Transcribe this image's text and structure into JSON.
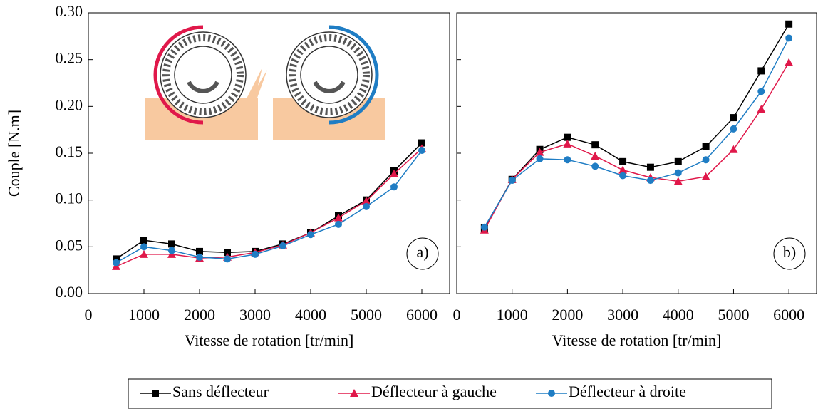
{
  "chart_data": [
    {
      "type": "line",
      "ylabel": "Couple [N.m]",
      "xlabel": "Vitesse de rotation [tr/min]",
      "annotation": "a)",
      "x": [
        500,
        1000,
        1500,
        2000,
        2500,
        3000,
        3500,
        4000,
        4500,
        5000,
        5500,
        6000
      ],
      "xlim": [
        0,
        6500
      ],
      "xticks": [
        0,
        1000,
        2000,
        3000,
        4000,
        5000,
        6000
      ],
      "ylim": [
        0,
        0.3
      ],
      "yticks": [
        {
          "value": 0,
          "label": "0.00"
        },
        {
          "value": 0.05,
          "label": "0.05"
        },
        {
          "value": 0.1,
          "label": "0.10"
        },
        {
          "value": 0.15,
          "label": "0.15"
        },
        {
          "value": 0.2,
          "label": "0.20"
        },
        {
          "value": 0.25,
          "label": "0.25"
        },
        {
          "value": 0.3,
          "label": "0.30"
        }
      ],
      "series": [
        {
          "name": "Sans déflecteur",
          "color": "#000000",
          "marker": "square",
          "values": [
            0.037,
            0.057,
            0.053,
            0.045,
            0.044,
            0.045,
            0.053,
            0.065,
            0.083,
            0.1,
            0.131,
            0.161
          ]
        },
        {
          "name": "Déflecteur à gauche",
          "color": "#e0184a",
          "marker": "triangle",
          "values": [
            0.029,
            0.042,
            0.042,
            0.038,
            0.039,
            0.044,
            0.052,
            0.065,
            0.081,
            0.099,
            0.128,
            0.155
          ]
        },
        {
          "name": "Déflecteur à droite",
          "color": "#1f7dc4",
          "marker": "circle",
          "values": [
            0.033,
            0.05,
            0.046,
            0.039,
            0.037,
            0.042,
            0.051,
            0.063,
            0.074,
            0.093,
            0.114,
            0.153
          ]
        }
      ]
    },
    {
      "type": "line",
      "xlabel": "Vitesse de rotation [tr/min]",
      "annotation": "b)",
      "sharey": true,
      "x": [
        500,
        1000,
        1500,
        2000,
        2500,
        3000,
        3500,
        4000,
        4500,
        5000,
        5500,
        6000
      ],
      "xlim": [
        0,
        6500
      ],
      "xticks": [
        0,
        1000,
        2000,
        3000,
        4000,
        5000,
        6000
      ],
      "ylim": [
        0,
        0.3
      ],
      "yticks": [
        0,
        0.05,
        0.1,
        0.15,
        0.2,
        0.25,
        0.3
      ],
      "series": [
        {
          "name": "Sans déflecteur",
          "color": "#000000",
          "marker": "square",
          "values": [
            0.07,
            0.122,
            0.154,
            0.167,
            0.159,
            0.141,
            0.135,
            0.141,
            0.157,
            0.188,
            0.238,
            0.288
          ]
        },
        {
          "name": "Déflecteur à gauche",
          "color": "#e0184a",
          "marker": "triangle",
          "values": [
            0.068,
            0.122,
            0.151,
            0.16,
            0.147,
            0.132,
            0.124,
            0.12,
            0.125,
            0.154,
            0.197,
            0.247
          ]
        },
        {
          "name": "Déflecteur à droite",
          "color": "#1f7dc4",
          "marker": "circle",
          "values": [
            0.071,
            0.121,
            0.144,
            0.143,
            0.136,
            0.126,
            0.121,
            0.129,
            0.143,
            0.176,
            0.216,
            0.273
          ]
        }
      ]
    }
  ]
}
